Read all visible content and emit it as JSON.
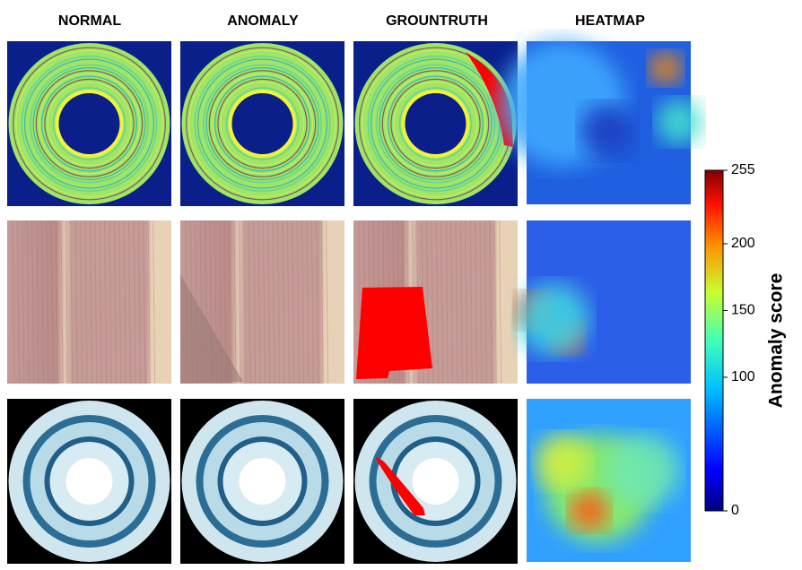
{
  "columns": [
    "NORMAL",
    "ANOMALY",
    "GROUNTRUTH",
    "HEATMAP"
  ],
  "colorbar": {
    "label": "Anomaly score",
    "range": [
      0,
      255
    ],
    "ticks": [
      0,
      100,
      150,
      200,
      255
    ]
  }
}
